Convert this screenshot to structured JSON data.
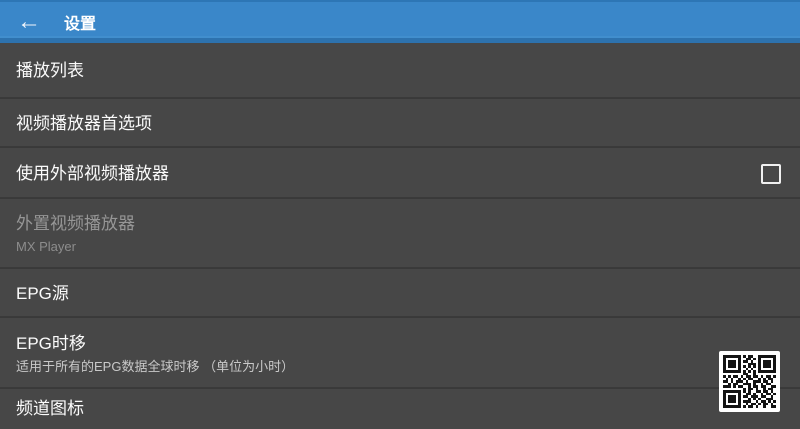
{
  "app_bar": {
    "title": "设置",
    "back_icon": "←"
  },
  "list": {
    "items": [
      {
        "title": "播放列表"
      },
      {
        "title": "视频播放器首选项"
      },
      {
        "title": "使用外部视频播放器",
        "control": "checkbox",
        "checked": false
      },
      {
        "title": "外置视频播放器",
        "subtitle": "MX Player",
        "disabled": true
      },
      {
        "title": "EPG源"
      },
      {
        "title": "EPG时移",
        "subtitle": "适用于所有的EPG数据全球时移 （单位为小时）"
      },
      {
        "title": "频道图标"
      }
    ]
  },
  "colors": {
    "accent": "#3a87c9",
    "background": "#474747",
    "title_text": "#fbfbfb",
    "subtitle_text": "#c9c9c9",
    "disabled_text": "#969696",
    "divider": "#5a5a5a"
  },
  "qr": {
    "matrix": [
      "111111101011001111111",
      "100000100110101000001",
      "101110101101001011101",
      "101110100011101011101",
      "101110101010101011101",
      "100000100101001000001",
      "111111101010101111111",
      "000000001100100000000",
      "101011010110110101101",
      "010100101011001010110",
      "110101110100111011010",
      "001011001110100101100",
      "111010110010110110011",
      "000000001011010010110",
      "111111101010011011010",
      "100000100110100101101",
      "101110101101110110010",
      "101110100010101001110",
      "101110101110010110101",
      "100000100101101011010",
      "111111101011010010011"
    ]
  }
}
